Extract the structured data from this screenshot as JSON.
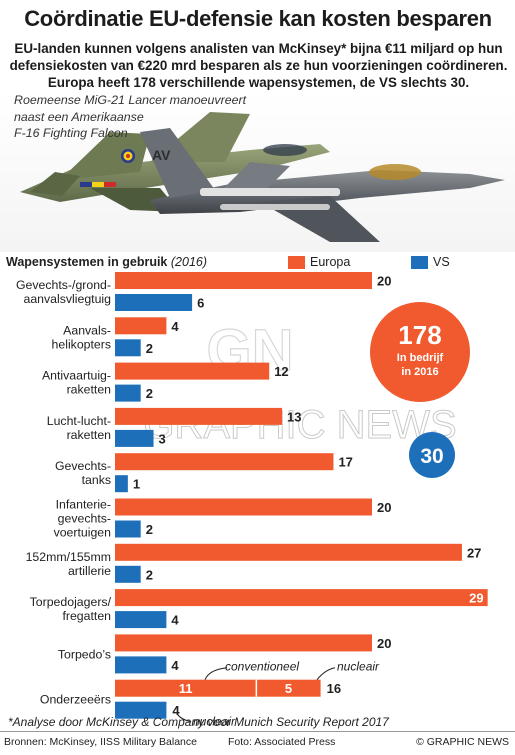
{
  "header": {
    "title": "Coördinatie EU-defensie kan kosten besparen",
    "subtitle_lines": [
      "EU-landen kunnen volgens analisten van McKinsey* bijna €11 miljard op hun",
      "defensiekosten van €220 mrd besparen als ze hun voorzieningen coördineren.",
      "Europa heeft 178 verschillende wapensystemen, de VS slechts 30."
    ]
  },
  "photo": {
    "caption_lines": [
      "Roemeense MiG-21 Lancer manoeuvreert",
      "naast een  Amerikaanse",
      "F-16 Fighting Falcon"
    ],
    "tail_code": "AV"
  },
  "section": {
    "title": "Wapensystemen in gebruik",
    "year": "(2016)"
  },
  "colors": {
    "europe": "#f05a2e",
    "us": "#1c6fb8",
    "text": "#222222"
  },
  "chart_data": {
    "type": "bar",
    "orientation": "horizontal",
    "title": "Wapensystemen in gebruik (2016)",
    "legend": [
      "Europa",
      "VS"
    ],
    "legend_position": "top-right",
    "xlim": [
      0,
      30
    ],
    "grid": false,
    "categories": [
      {
        "label": [
          "Gevechts-/grond-",
          "aanvalsvliegtuig"
        ],
        "europe": 20,
        "us": 6
      },
      {
        "label": [
          "Aanvals-",
          "helikopters"
        ],
        "europe": 4,
        "us": 2
      },
      {
        "label": [
          "Antivaartuig-",
          "raketten"
        ],
        "europe": 12,
        "us": 2
      },
      {
        "label": [
          "Lucht-lucht-",
          "raketten"
        ],
        "europe": 13,
        "us": 3
      },
      {
        "label": [
          "Gevechts-",
          "tanks"
        ],
        "europe": 17,
        "us": 1
      },
      {
        "label": [
          "Infanterie-",
          "gevechts-",
          "voertuigen"
        ],
        "europe": 20,
        "us": 2
      },
      {
        "label": [
          "152mm/155mm",
          "artillerie"
        ],
        "europe": 27,
        "us": 2
      },
      {
        "label": [
          "Torpedojagers/",
          "fregatten"
        ],
        "europe": 29,
        "us": 4
      },
      {
        "label": [
          "Torpedo’s"
        ],
        "europe": 20,
        "us": 4
      },
      {
        "label": [
          "Onderzeeërs"
        ],
        "europe": 16,
        "us": 4,
        "europe_split": {
          "conventioneel": 11,
          "nucleair": 5
        },
        "us_split": {
          "nucleair": 4
        }
      }
    ],
    "annotations": {
      "conventional": "conventioneel",
      "nuclear": "nucleair"
    },
    "totals": {
      "europe": {
        "value": "178",
        "note_lines": [
          "In bedrijf",
          "in 2016"
        ]
      },
      "us": {
        "value": "30"
      }
    }
  },
  "watermark": "GRAPHIC NEWS",
  "footer": {
    "footnote": "*Analyse door McKinsey & Company voor Munich Security Report 2017",
    "sources": "Bronnen: McKinsey, IISS Military Balance",
    "photo_credit": "Foto: Associated Press",
    "brand": "© GRAPHIC NEWS"
  }
}
